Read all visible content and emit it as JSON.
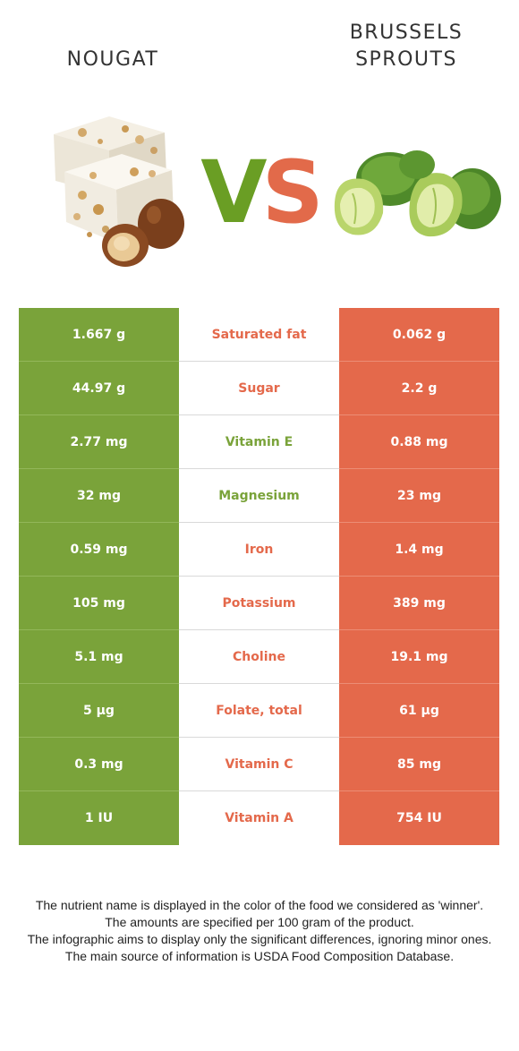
{
  "header": {
    "left_title": "NOUGAT",
    "right_title_line1": "BRUSSELS",
    "right_title_line2": "SPROUTS",
    "vs_v": "V",
    "vs_s": "S"
  },
  "colors": {
    "left_food": "#7aa33a",
    "right_food": "#e4694b"
  },
  "rows": [
    {
      "left": "1.667 g",
      "nutrient": "Saturated fat",
      "right": "0.062 g",
      "winner": "right"
    },
    {
      "left": "44.97 g",
      "nutrient": "Sugar",
      "right": "2.2 g",
      "winner": "right"
    },
    {
      "left": "2.77 mg",
      "nutrient": "Vitamin E",
      "right": "0.88 mg",
      "winner": "left"
    },
    {
      "left": "32 mg",
      "nutrient": "Magnesium",
      "right": "23 mg",
      "winner": "left"
    },
    {
      "left": "0.59 mg",
      "nutrient": "Iron",
      "right": "1.4 mg",
      "winner": "right"
    },
    {
      "left": "105 mg",
      "nutrient": "Potassium",
      "right": "389 mg",
      "winner": "right"
    },
    {
      "left": "5.1 mg",
      "nutrient": "Choline",
      "right": "19.1 mg",
      "winner": "right"
    },
    {
      "left": "5 µg",
      "nutrient": "Folate, total",
      "right": "61 µg",
      "winner": "right"
    },
    {
      "left": "0.3 mg",
      "nutrient": "Vitamin C",
      "right": "85 mg",
      "winner": "right"
    },
    {
      "left": "1 IU",
      "nutrient": "Vitamin A",
      "right": "754 IU",
      "winner": "right"
    }
  ],
  "footer": {
    "line1": "The nutrient name is displayed in the color of the food we considered as 'winner'.",
    "line2": "The amounts are specified per 100 gram of the product.",
    "line3": "The infographic aims to display only the significant differences, ignoring minor ones.",
    "line4": "The main source of information is USDA Food Composition Database."
  }
}
